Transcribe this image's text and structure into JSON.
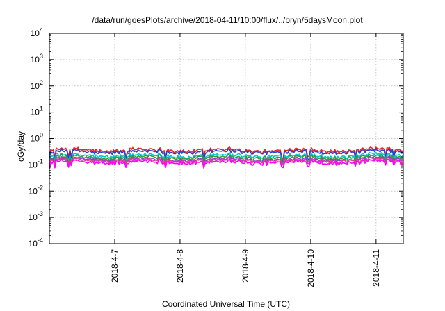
{
  "chart_data": {
    "type": "line",
    "title": "/data/run/goesPlots/archive/2018-04-11/10:00/flux/../bryn/5daysMoon.plot",
    "xlabel": "Coordinated Universal Time (UTC)",
    "ylabel": "cGy/day",
    "yscale": "log",
    "ylim": [
      0.0001,
      10000
    ],
    "xlim": [
      "2018-04-06 00:00",
      "2018-04-11 10:00"
    ],
    "y_ticks": [
      {
        "base": "10",
        "exp": "-4",
        "value": 0.0001
      },
      {
        "base": "10",
        "exp": "-3",
        "value": 0.001
      },
      {
        "base": "10",
        "exp": "-2",
        "value": 0.01
      },
      {
        "base": "10",
        "exp": "-1",
        "value": 0.1
      },
      {
        "base": "10",
        "exp": "0",
        "value": 1
      },
      {
        "base": "10",
        "exp": "1",
        "value": 10
      },
      {
        "base": "10",
        "exp": "2",
        "value": 100
      },
      {
        "base": "10",
        "exp": "3",
        "value": 1000
      },
      {
        "base": "10",
        "exp": "4",
        "value": 10000
      }
    ],
    "x_ticks": [
      "2018-4-7",
      "2018-4-8",
      "2018-4-9",
      "2018-4-10",
      "2018-4-11"
    ],
    "grid": true,
    "legend": "none",
    "series": [
      {
        "color": "#e3282a",
        "level": 0.36,
        "spike_depth": 0.05
      },
      {
        "color": "#2040d8",
        "level": 0.31,
        "spike_depth": 0.06
      },
      {
        "color": "#00c8c8",
        "level": 0.22,
        "spike_depth": 0.04
      },
      {
        "color": "#2ca02c",
        "level": 0.19,
        "spike_depth": 0.04
      },
      {
        "color": "#8a3fd0",
        "level": 0.16,
        "spike_depth": 0.035
      },
      {
        "color": "#e0458a",
        "level": 0.145,
        "spike_depth": 0.03
      },
      {
        "color": "#ff00ff",
        "level": 0.125,
        "spike_depth": 0.035
      }
    ]
  }
}
